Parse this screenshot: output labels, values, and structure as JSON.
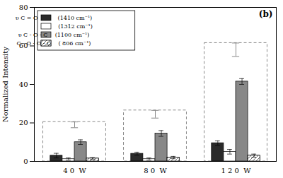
{
  "chart_data": {
    "type": "bar",
    "categories": [
      "4 0  W",
      "8 0  W",
      "1 2 0  W"
    ],
    "series": [
      {
        "name": "υ C = O           (1410 cm⁻¹)",
        "color": "#2a2a2a",
        "values": [
          3.0,
          4.0,
          9.5
        ],
        "errors": [
          1.2,
          0.8,
          1.2
        ]
      },
      {
        "name": "                        (1312 cm⁻¹)",
        "color": "#ffffff",
        "values": [
          1.2,
          1.2,
          5.0
        ],
        "errors": [
          0.6,
          0.6,
          1.2
        ]
      },
      {
        "name": "υ C - O - C    (1100 cm⁻¹)",
        "color": "#888888",
        "values": [
          10.0,
          14.5,
          41.5
        ],
        "errors": [
          1.2,
          1.5,
          1.5
        ]
      },
      {
        "name": "C - O - O - C    ( 806 cm⁻¹)",
        "color": "#ffffff",
        "values": [
          1.5,
          2.0,
          3.0
        ],
        "errors": [
          0.5,
          0.6,
          0.8
        ]
      }
    ],
    "totals": {
      "values": [
        19.0,
        24.5,
        58.0
      ],
      "errors": [
        1.5,
        2.0,
        3.5
      ],
      "color": "#888888"
    },
    "ylabel": "Normalized Intensity",
    "ylim": [
      0,
      80
    ],
    "yticks": [
      0,
      20,
      40,
      60,
      80
    ],
    "annotations": [
      "(b)"
    ],
    "legend": "upper left",
    "grid": false
  }
}
